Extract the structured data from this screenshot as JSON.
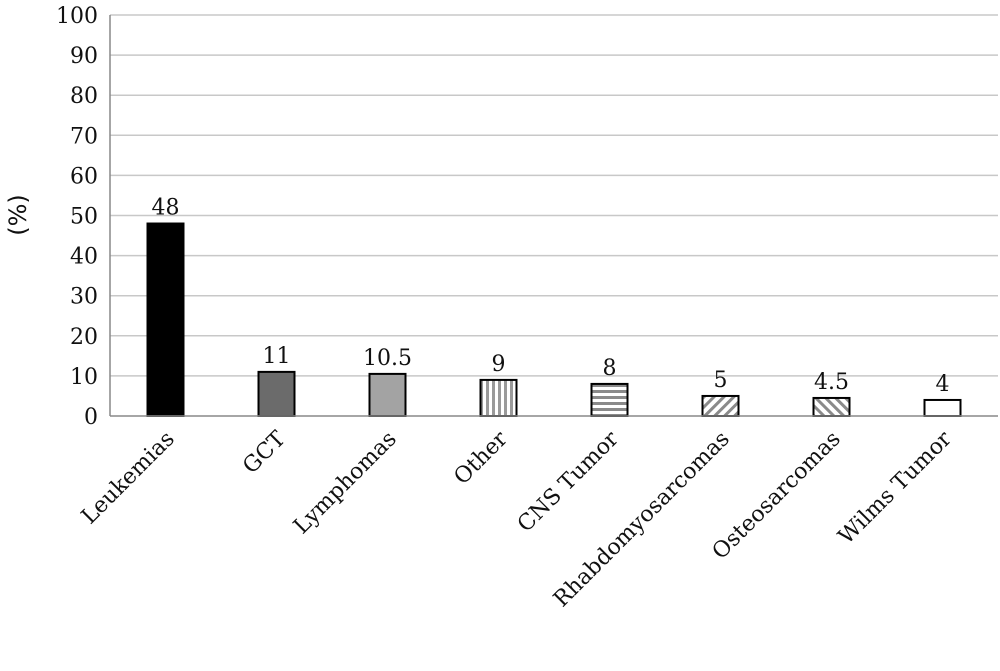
{
  "chart_data": {
    "type": "bar",
    "title": "",
    "xlabel": "",
    "ylabel": "(%)",
    "ylim": [
      0,
      100
    ],
    "yticks": [
      0,
      10,
      20,
      30,
      40,
      50,
      60,
      70,
      80,
      90,
      100
    ],
    "grid": true,
    "categories": [
      "Leukemias",
      "GCT",
      "Lymphomas",
      "Other",
      "CNS Tumor",
      "Rhabdomyosarcomas",
      "Osteosarcomas",
      "Wilms Tumor"
    ],
    "values": [
      48,
      11,
      10.5,
      9,
      8,
      5,
      4.5,
      4
    ],
    "value_labels": [
      "48",
      "11",
      "10.5",
      "9",
      "8",
      "5",
      "4.5",
      "4"
    ],
    "bar_fills": [
      "solid-black",
      "solid-dark-gray",
      "solid-light-gray",
      "vertical-stripes",
      "horizontal-stripes",
      "diagonal-down",
      "diagonal-up",
      "white"
    ]
  }
}
